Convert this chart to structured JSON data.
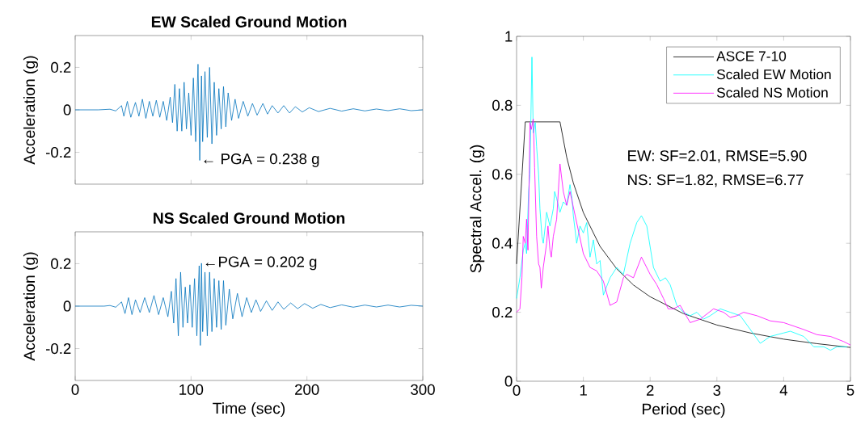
{
  "chart_data": [
    {
      "type": "line",
      "title": "EW Scaled Ground Motion",
      "ylabel": "Acceleration (g)",
      "xlim": [
        0,
        300
      ],
      "ylim": [
        -0.35,
        0.35
      ],
      "xticks": [
        0,
        100,
        200,
        300
      ],
      "yticks": [
        -0.2,
        0,
        0.2
      ],
      "tick_labels": "y",
      "annotations": [
        {
          "text": "← PGA = 0.238 g",
          "x": 107.5,
          "y": -0.238
        }
      ],
      "series": [
        {
          "color": "#0072bd",
          "x": [
            0,
            20,
            30,
            35,
            40,
            42,
            45,
            48,
            52,
            55,
            58,
            61,
            64,
            67,
            70,
            73,
            76,
            79,
            82,
            84,
            86,
            88,
            90,
            92,
            94,
            96,
            98,
            100,
            102,
            104,
            106,
            107.5,
            109,
            110,
            112,
            114,
            116,
            118,
            120,
            122,
            124,
            126,
            128,
            130,
            132,
            135,
            138,
            141,
            145,
            149,
            153,
            157,
            162,
            166,
            170,
            175,
            180,
            185,
            190,
            196,
            202,
            210,
            220,
            230,
            240,
            250,
            260,
            270,
            280,
            290,
            300
          ],
          "values": [
            0,
            0,
            0.003,
            -0.005,
            0.02,
            -0.03,
            0.04,
            -0.035,
            0.035,
            -0.03,
            0.05,
            -0.04,
            0.04,
            -0.03,
            0.045,
            -0.035,
            0.04,
            -0.05,
            0.06,
            -0.06,
            0.12,
            -0.1,
            0.1,
            -0.1,
            0.13,
            -0.09,
            0.08,
            -0.12,
            0.15,
            -0.15,
            0.215,
            -0.238,
            0.16,
            -0.15,
            0.18,
            -0.13,
            0.2,
            -0.16,
            0.13,
            -0.12,
            0.1,
            -0.09,
            0.11,
            -0.08,
            0.08,
            -0.05,
            0.05,
            -0.04,
            0.04,
            -0.03,
            0.03,
            -0.025,
            0.03,
            -0.02,
            0.02,
            -0.015,
            0.02,
            -0.015,
            0.015,
            -0.01,
            0.01,
            -0.008,
            0.007,
            -0.006,
            0.005,
            -0.005,
            0.004,
            -0.004,
            0.005,
            -0.004,
            0
          ]
        }
      ]
    },
    {
      "type": "line",
      "title": "NS Scaled Ground Motion",
      "xlabel": "Time (sec)",
      "ylabel": "Acceleration (g)",
      "xlim": [
        0,
        300
      ],
      "ylim": [
        -0.35,
        0.35
      ],
      "xticks": [
        0,
        100,
        200,
        300
      ],
      "yticks": [
        -0.2,
        0,
        0.2
      ],
      "annotations": [
        {
          "text": "←PGA = 0.202 g",
          "x": 109,
          "y": 0.202
        }
      ],
      "series": [
        {
          "color": "#0072bd",
          "x": [
            0,
            25,
            30,
            35,
            40,
            43,
            46,
            49,
            52,
            56,
            60,
            64,
            68,
            72,
            76,
            80,
            83,
            85,
            87,
            89,
            91,
            93,
            95,
            97,
            99,
            101,
            103,
            105,
            107,
            108,
            109,
            110,
            112,
            114,
            116,
            118,
            120,
            122,
            124,
            126,
            128,
            130,
            133,
            136,
            140,
            144,
            148,
            152,
            156,
            160,
            165,
            170,
            175,
            180,
            186,
            192,
            198,
            205,
            212,
            220,
            230,
            240,
            250,
            260,
            270,
            280,
            290,
            300
          ],
          "values": [
            0,
            0,
            0.003,
            -0.005,
            0.02,
            -0.035,
            0.04,
            -0.04,
            0.03,
            -0.03,
            0.04,
            -0.03,
            0.05,
            -0.04,
            0.04,
            -0.05,
            0.07,
            -0.08,
            0.13,
            -0.14,
            0.16,
            -0.1,
            0.09,
            -0.08,
            0.1,
            -0.1,
            0.13,
            -0.14,
            0.19,
            -0.185,
            0.202,
            -0.12,
            0.16,
            -0.14,
            0.16,
            -0.12,
            0.13,
            -0.1,
            0.12,
            -0.11,
            0.12,
            -0.09,
            0.08,
            -0.06,
            0.06,
            -0.05,
            0.04,
            -0.03,
            0.03,
            -0.025,
            0.025,
            -0.02,
            0.02,
            -0.015,
            0.015,
            -0.012,
            0.012,
            -0.01,
            0.008,
            -0.007,
            0.006,
            -0.005,
            0.005,
            -0.004,
            0.005,
            -0.004,
            0.004,
            0
          ]
        }
      ]
    },
    {
      "type": "line",
      "xlabel": "Period (sec)",
      "ylabel": "Spectral Accel. (g)",
      "xlim": [
        0,
        5
      ],
      "ylim": [
        0,
        1
      ],
      "xticks": [
        0,
        1,
        2,
        3,
        4,
        5
      ],
      "yticks": [
        0,
        0.2,
        0.4,
        0.6,
        0.8,
        1
      ],
      "legend": "top right",
      "annotations": [
        "EW: SF=2.01, RMSE=5.90",
        "NS: SF=1.82, RMSE=6.77"
      ],
      "series": [
        {
          "name": "ASCE 7-10",
          "color": "#000000",
          "x": [
            0,
            0.13,
            0.65,
            0.75,
            0.85,
            1,
            1.25,
            1.5,
            1.75,
            2,
            2.5,
            3,
            3.5,
            4,
            4.5,
            5
          ],
          "values": [
            0.34,
            0.752,
            0.752,
            0.65,
            0.575,
            0.489,
            0.391,
            0.326,
            0.279,
            0.245,
            0.196,
            0.163,
            0.14,
            0.122,
            0.109,
            0.098
          ]
        },
        {
          "name": "Scaled EW Motion",
          "color": "#00ffff",
          "x": [
            0,
            0.05,
            0.1,
            0.13,
            0.15,
            0.18,
            0.2,
            0.23,
            0.25,
            0.28,
            0.3,
            0.33,
            0.35,
            0.38,
            0.4,
            0.43,
            0.45,
            0.5,
            0.55,
            0.57,
            0.6,
            0.65,
            0.7,
            0.75,
            0.8,
            0.83,
            0.85,
            0.9,
            0.95,
            1,
            1.05,
            1.1,
            1.15,
            1.2,
            1.25,
            1.3,
            1.4,
            1.5,
            1.6,
            1.7,
            1.8,
            1.87,
            1.95,
            2.05,
            2.15,
            2.23,
            2.3,
            2.4,
            2.5,
            2.6,
            2.7,
            2.8,
            2.9,
            3.05,
            3.2,
            3.35,
            3.5,
            3.65,
            3.8,
            4,
            4.1,
            4.3,
            4.45,
            4.6,
            4.7,
            4.8,
            4.95
          ],
          "values": [
            0.24,
            0.3,
            0.38,
            0.4,
            0.37,
            0.55,
            0.6,
            0.94,
            0.72,
            0.75,
            0.68,
            0.6,
            0.5,
            0.42,
            0.4,
            0.45,
            0.49,
            0.45,
            0.5,
            0.55,
            0.53,
            0.49,
            0.52,
            0.51,
            0.57,
            0.53,
            0.48,
            0.4,
            0.45,
            0.43,
            0.46,
            0.36,
            0.41,
            0.34,
            0.35,
            0.25,
            0.3,
            0.33,
            0.31,
            0.4,
            0.46,
            0.48,
            0.45,
            0.33,
            0.29,
            0.3,
            0.28,
            0.22,
            0.2,
            0.19,
            0.2,
            0.18,
            0.19,
            0.21,
            0.2,
            0.19,
            0.15,
            0.11,
            0.13,
            0.14,
            0.145,
            0.13,
            0.1,
            0.1,
            0.09,
            0.1,
            0.1
          ]
        },
        {
          "name": "Scaled NS Motion",
          "color": "#ff00ff",
          "x": [
            0,
            0.05,
            0.08,
            0.1,
            0.13,
            0.15,
            0.17,
            0.19,
            0.2,
            0.22,
            0.25,
            0.27,
            0.3,
            0.33,
            0.35,
            0.37,
            0.4,
            0.45,
            0.47,
            0.5,
            0.52,
            0.55,
            0.6,
            0.65,
            0.7,
            0.75,
            0.8,
            0.9,
            1,
            1.1,
            1.2,
            1.3,
            1.4,
            1.5,
            1.6,
            1.65,
            1.75,
            1.87,
            2,
            2.1,
            2.2,
            2.27,
            2.35,
            2.45,
            2.6,
            2.75,
            2.95,
            3.1,
            3.2,
            3.3,
            3.4,
            3.6,
            3.8,
            4,
            4.3,
            4.5,
            4.7,
            4.9,
            5
          ],
          "values": [
            0.2,
            0.21,
            0.3,
            0.42,
            0.4,
            0.47,
            0.38,
            0.6,
            0.75,
            0.73,
            0.76,
            0.62,
            0.42,
            0.34,
            0.33,
            0.27,
            0.33,
            0.4,
            0.45,
            0.38,
            0.36,
            0.42,
            0.47,
            0.63,
            0.55,
            0.51,
            0.55,
            0.46,
            0.37,
            0.33,
            0.32,
            0.29,
            0.22,
            0.23,
            0.3,
            0.31,
            0.3,
            0.36,
            0.31,
            0.28,
            0.24,
            0.21,
            0.21,
            0.22,
            0.17,
            0.18,
            0.21,
            0.2,
            0.185,
            0.19,
            0.2,
            0.19,
            0.175,
            0.17,
            0.15,
            0.135,
            0.13,
            0.115,
            0.105
          ]
        }
      ]
    }
  ]
}
